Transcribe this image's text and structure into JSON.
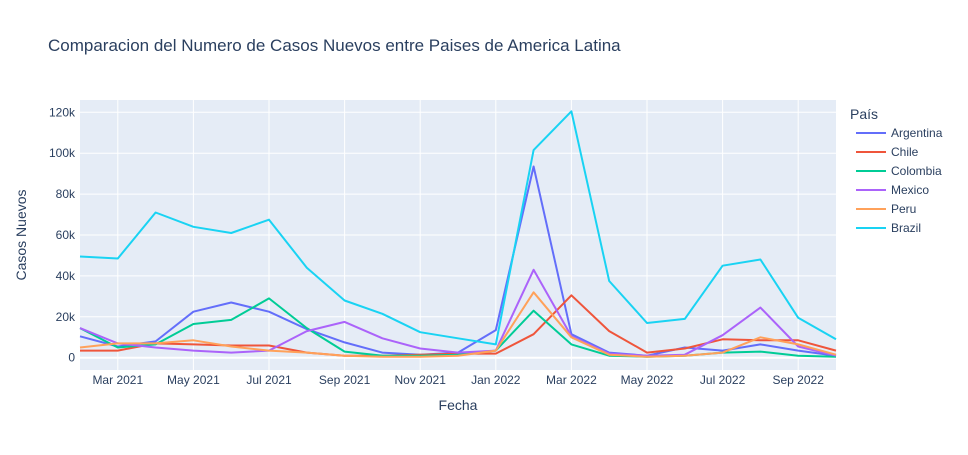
{
  "chart_data": {
    "type": "line",
    "title": "Comparacion del Numero de Casos Nuevos entre Paises de America Latina",
    "xlabel": "Fecha",
    "ylabel": "Casos Nuevos",
    "legend_title": "País",
    "legend_position": "right",
    "grid": true,
    "plot_bgcolor": "#E5ECF6",
    "x": [
      "2021-02",
      "2021-03",
      "2021-04",
      "2021-05",
      "2021-06",
      "2021-07",
      "2021-08",
      "2021-09",
      "2021-10",
      "2021-11",
      "2021-12",
      "2022-01",
      "2022-02",
      "2022-03",
      "2022-04",
      "2022-05",
      "2022-06",
      "2022-07",
      "2022-08",
      "2022-09",
      "2022-10"
    ],
    "x_range": [
      "2021-02-01",
      "2022-10-01"
    ],
    "x_ticks": [
      {
        "date": "2021-03-01",
        "label": "Mar 2021"
      },
      {
        "date": "2021-05-01",
        "label": "May 2021"
      },
      {
        "date": "2021-07-01",
        "label": "Jul 2021"
      },
      {
        "date": "2021-09-01",
        "label": "Sep 2021"
      },
      {
        "date": "2021-11-01",
        "label": "Nov 2021"
      },
      {
        "date": "2022-01-01",
        "label": "Jan 2022"
      },
      {
        "date": "2022-03-01",
        "label": "Mar 2022"
      },
      {
        "date": "2022-05-01",
        "label": "May 2022"
      },
      {
        "date": "2022-07-01",
        "label": "Jul 2022"
      },
      {
        "date": "2022-09-01",
        "label": "Sep 2022"
      }
    ],
    "ylim": [
      -6000,
      126000
    ],
    "y_ticks": [
      {
        "value": 0,
        "label": "0"
      },
      {
        "value": 20000,
        "label": "20k"
      },
      {
        "value": 40000,
        "label": "40k"
      },
      {
        "value": 60000,
        "label": "60k"
      },
      {
        "value": 80000,
        "label": "80k"
      },
      {
        "value": 100000,
        "label": "100k"
      },
      {
        "value": 120000,
        "label": "120k"
      }
    ],
    "series": [
      {
        "name": "Argentina",
        "color": "#636EFA",
        "values": [
          10500,
          5500,
          8000,
          22500,
          27000,
          22500,
          14000,
          7500,
          2500,
          1500,
          2500,
          13500,
          93500,
          11500,
          2500,
          1000,
          5000,
          3500,
          6500,
          3500,
          1000
        ]
      },
      {
        "name": "Chile",
        "color": "#EF553B",
        "values": [
          3500,
          3500,
          7000,
          6500,
          6000,
          6000,
          2500,
          1000,
          1000,
          1500,
          2000,
          2000,
          11500,
          30500,
          13000,
          2500,
          4500,
          9000,
          8500,
          8500,
          3500
        ]
      },
      {
        "name": "Colombia",
        "color": "#00CC96",
        "values": [
          14500,
          5000,
          6500,
          16500,
          18500,
          29000,
          14500,
          3000,
          1000,
          1000,
          1500,
          3500,
          23000,
          6500,
          1000,
          500,
          1000,
          2500,
          3000,
          1000,
          500
        ]
      },
      {
        "name": "Mexico",
        "color": "#AB63FA",
        "values": [
          14500,
          7000,
          5000,
          3500,
          2500,
          3500,
          13000,
          17500,
          9500,
          4500,
          2500,
          3500,
          43000,
          10500,
          2000,
          1000,
          1500,
          11000,
          24500,
          5500,
          1000
        ]
      },
      {
        "name": "Peru",
        "color": "#FFA15A",
        "values": [
          5000,
          7000,
          7000,
          8500,
          5500,
          3500,
          2500,
          1000,
          500,
          500,
          1000,
          3500,
          32000,
          10000,
          1500,
          500,
          1000,
          2500,
          10000,
          6500,
          1500
        ]
      },
      {
        "name": "Brazil",
        "color": "#19D3F3",
        "values": [
          49500,
          48500,
          71000,
          64000,
          61000,
          67500,
          44000,
          28000,
          21500,
          12500,
          9500,
          6500,
          101500,
          120500,
          37500,
          17000,
          19000,
          45000,
          48000,
          19500,
          9000
        ]
      }
    ]
  }
}
